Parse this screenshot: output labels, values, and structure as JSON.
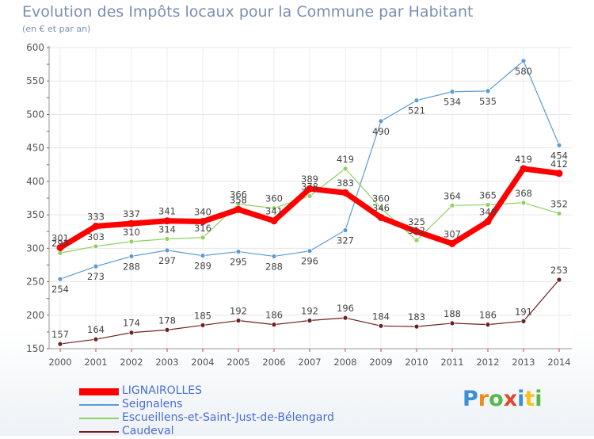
{
  "header": {
    "title": "Evolution des Impôts locaux pour la Commune par Habitant",
    "subtitle": "(en € et par an)"
  },
  "logo": {
    "text": "Proxiti",
    "colors": [
      "#3a8fd6",
      "#f08a1c",
      "#58b847",
      "#e4452d",
      "#3a8fd6",
      "#f4c21a",
      "#58b847"
    ]
  },
  "chart_data": {
    "type": "line",
    "x": [
      "2000",
      "2001",
      "2002",
      "2003",
      "2004",
      "2005",
      "2006",
      "2007",
      "2008",
      "2009",
      "2010",
      "2011",
      "2012",
      "2013",
      "2014"
    ],
    "ylim": [
      150,
      600
    ],
    "yticks": [
      150,
      200,
      250,
      300,
      350,
      400,
      450,
      500,
      550,
      600
    ],
    "grid": true,
    "legend_position": "bottom-left",
    "series": [
      {
        "name": "Seignalens",
        "color": "#5b9bd5",
        "width": 1.2,
        "labelPos": "below",
        "values": [
          254,
          273,
          288,
          297,
          289,
          295,
          288,
          296,
          327,
          490,
          521,
          534,
          535,
          580,
          454
        ]
      },
      {
        "name": "Escueillens-et-Saint-Just-de-Bélengard",
        "color": "#8fd160",
        "width": 1.2,
        "labelPos": "above",
        "values": [
          293,
          303,
          310,
          314,
          316,
          366,
          360,
          378,
          419,
          360,
          312,
          364,
          365,
          368,
          352
        ]
      },
      {
        "name": "Caudeval",
        "color": "#6e1f1f",
        "width": 1.2,
        "labelPos": "above",
        "values": [
          157,
          164,
          174,
          178,
          185,
          192,
          186,
          192,
          196,
          184,
          183,
          188,
          186,
          191,
          253
        ]
      },
      {
        "name": "LIGNAIROLLES",
        "color": "#ff0000",
        "width": 7,
        "labelPos": "above",
        "values": [
          301,
          333,
          337,
          341,
          340,
          358,
          341,
          389,
          383,
          346,
          325,
          307,
          340,
          419,
          412
        ]
      }
    ],
    "legend_order": [
      "LIGNAIROLLES",
      "Seignalens",
      "Escueillens-et-Saint-Just-de-Bélengard",
      "Caudeval"
    ]
  }
}
